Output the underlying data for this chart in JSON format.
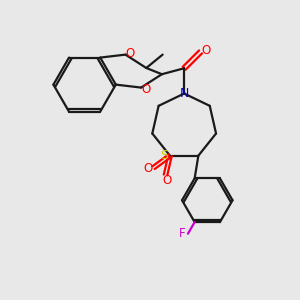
{
  "bg_color": "#e8e8e8",
  "bond_color": "#1a1a1a",
  "o_color": "#ff0000",
  "n_color": "#0000cc",
  "s_color": "#cccc00",
  "f_color": "#cc00cc",
  "line_width": 1.6,
  "figsize": [
    3.0,
    3.0
  ],
  "dpi": 100,
  "xlim": [
    0,
    10
  ],
  "ylim": [
    0,
    10
  ]
}
